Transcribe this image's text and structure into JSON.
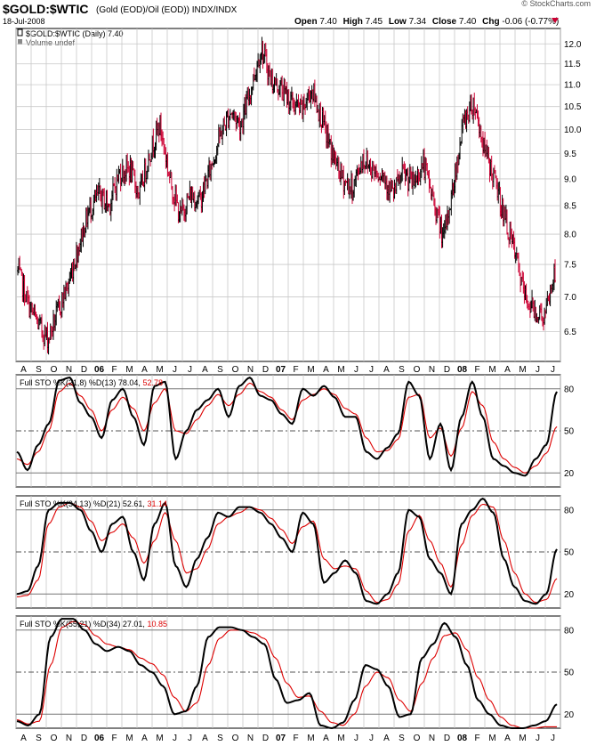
{
  "header": {
    "symbol": "$GOLD:$WTIC",
    "description": "(Gold (EOD)/Oil (EOD)) INDX/INDX",
    "date": "18-Jul-2008",
    "copyright": "© StockCharts.com",
    "quote": {
      "open_label": "Open",
      "open": "7.40",
      "high_label": "High",
      "high": "7.45",
      "low_label": "Low",
      "low": "7.34",
      "close_label": "Close",
      "close": "7.40",
      "chg_label": "Chg",
      "chg": "-0.06 (-0.77%)"
    },
    "legend_main": "$GOLD:$WTIC (Daily) 7.40",
    "legend_volume": "Volume undef"
  },
  "colors": {
    "up_bar": "#000000",
    "down_bar": "#cc0033",
    "k_line": "#000000",
    "d_line": "#dd0000",
    "grid": "#c8c8c8",
    "border": "#000000"
  },
  "x_axis": {
    "months": [
      "A",
      "S",
      "O",
      "N",
      "D",
      "06",
      "F",
      "M",
      "A",
      "M",
      "J",
      "J",
      "A",
      "S",
      "O",
      "N",
      "D",
      "07",
      "F",
      "M",
      "A",
      "M",
      "J",
      "J",
      "A",
      "S",
      "O",
      "N",
      "D",
      "08",
      "F",
      "M",
      "A",
      "M",
      "J",
      "J"
    ],
    "bold_labels": [
      "06",
      "07",
      "08"
    ]
  },
  "chart_data": [
    {
      "type": "bar",
      "subtype": "ohlc",
      "title": "$GOLD:$WTIC (Daily) 7.40",
      "y_scale": "log",
      "ylim": [
        6.1,
        12.4
      ],
      "y_ticks": [
        "6.5",
        "7.0",
        "7.5",
        "8.0",
        "8.5",
        "9.0",
        "9.5",
        "10.0",
        "10.5",
        "11.0",
        "11.5",
        "12.0"
      ],
      "y_tick_values": [
        6.5,
        7.0,
        7.5,
        8.0,
        8.5,
        9.0,
        9.5,
        10.0,
        10.5,
        11.0,
        11.5,
        12.0
      ],
      "start_month": "Aug 2005",
      "points_per_month": 2,
      "close_path": [
        7.4,
        6.9,
        6.6,
        6.4,
        6.8,
        7.2,
        7.8,
        8.4,
        8.7,
        8.5,
        9.1,
        9.2,
        8.7,
        9.5,
        10.1,
        9.0,
        8.3,
        8.7,
        8.6,
        9.2,
        9.9,
        10.4,
        10.1,
        10.9,
        11.9,
        11.1,
        10.9,
        10.6,
        10.4,
        10.9,
        10.2,
        9.5,
        9.0,
        8.8,
        9.4,
        9.2,
        9.1,
        8.7,
        9.1,
        8.9,
        9.3,
        8.6,
        7.9,
        8.9,
        10.2,
        10.6,
        9.6,
        9.0,
        8.3,
        7.7,
        7.0,
        6.8,
        6.7,
        7.4
      ]
    },
    {
      "type": "line",
      "title": "Full STO %K(21,8) %D(13) 78.04, 52.78",
      "label": "Full STO %K(21,8) %D(13)",
      "k_value": "78.04",
      "d_value": "52.78",
      "ylim": [
        10,
        90
      ],
      "y_ticks": [
        "20",
        "50",
        "80"
      ],
      "series": [
        {
          "name": "%K",
          "values": [
            35,
            22,
            40,
            55,
            86,
            88,
            70,
            60,
            45,
            72,
            80,
            60,
            40,
            82,
            85,
            30,
            50,
            65,
            72,
            80,
            60,
            82,
            88,
            75,
            72,
            62,
            55,
            80,
            75,
            82,
            74,
            60,
            60,
            35,
            30,
            38,
            48,
            85,
            75,
            30,
            55,
            22,
            60,
            85,
            60,
            30,
            25,
            20,
            18,
            30,
            40,
            78
          ]
        },
        {
          "name": "%D",
          "values": [
            30,
            26,
            35,
            50,
            78,
            84,
            75,
            65,
            50,
            65,
            74,
            66,
            50,
            70,
            80,
            50,
            48,
            58,
            68,
            76,
            68,
            76,
            84,
            78,
            74,
            65,
            58,
            72,
            76,
            80,
            76,
            66,
            62,
            45,
            35,
            36,
            44,
            74,
            76,
            45,
            52,
            32,
            52,
            78,
            68,
            42,
            30,
            24,
            20,
            25,
            34,
            53
          ]
        }
      ]
    },
    {
      "type": "line",
      "title": "Full STO %K(34,13) %D(21) 52.61, 31.14",
      "label": "Full STO %K(34,13) %D(21)",
      "k_value": "52.61",
      "d_value": "31.14",
      "ylim": [
        10,
        90
      ],
      "y_ticks": [
        "20",
        "50",
        "80"
      ],
      "series": [
        {
          "name": "%K",
          "values": [
            20,
            22,
            40,
            80,
            85,
            85,
            80,
            65,
            50,
            70,
            75,
            50,
            30,
            70,
            85,
            40,
            25,
            45,
            60,
            78,
            75,
            82,
            82,
            78,
            70,
            60,
            50,
            78,
            70,
            28,
            35,
            44,
            35,
            15,
            13,
            20,
            35,
            80,
            75,
            45,
            35,
            20,
            70,
            80,
            88,
            78,
            45,
            25,
            15,
            13,
            20,
            52
          ]
        },
        {
          "name": "%D",
          "values": [
            18,
            19,
            30,
            70,
            82,
            85,
            82,
            72,
            58,
            64,
            70,
            60,
            42,
            58,
            78,
            58,
            35,
            38,
            52,
            70,
            75,
            78,
            82,
            80,
            74,
            66,
            56,
            68,
            72,
            45,
            38,
            40,
            38,
            22,
            14,
            16,
            27,
            65,
            76,
            58,
            42,
            25,
            55,
            76,
            84,
            82,
            58,
            35,
            20,
            14,
            16,
            31
          ]
        }
      ]
    },
    {
      "type": "line",
      "title": "Full STO %K(55,21) %D(34) 27.01, 10.85",
      "label": "Full STO %K(55,21) %D(34)",
      "k_value": "27.01",
      "d_value": "10.85",
      "ylim": [
        10,
        90
      ],
      "y_ticks": [
        "20",
        "50",
        "80"
      ],
      "series": [
        {
          "name": "%K",
          "values": [
            15,
            12,
            20,
            75,
            88,
            88,
            80,
            70,
            65,
            68,
            65,
            55,
            50,
            40,
            20,
            22,
            40,
            75,
            82,
            82,
            80,
            75,
            70,
            45,
            28,
            30,
            35,
            12,
            10,
            14,
            30,
            55,
            52,
            40,
            18,
            20,
            60,
            70,
            85,
            75,
            55,
            30,
            20,
            12,
            10,
            10,
            12,
            15,
            27
          ]
        },
        {
          "name": "%D",
          "values": [
            16,
            13,
            15,
            55,
            82,
            86,
            84,
            76,
            70,
            68,
            66,
            60,
            56,
            48,
            32,
            22,
            28,
            55,
            74,
            80,
            80,
            78,
            74,
            60,
            42,
            32,
            33,
            22,
            14,
            12,
            20,
            40,
            50,
            46,
            30,
            22,
            42,
            60,
            76,
            78,
            66,
            46,
            30,
            18,
            12,
            10,
            10,
            11,
            11
          ]
        }
      ]
    }
  ]
}
